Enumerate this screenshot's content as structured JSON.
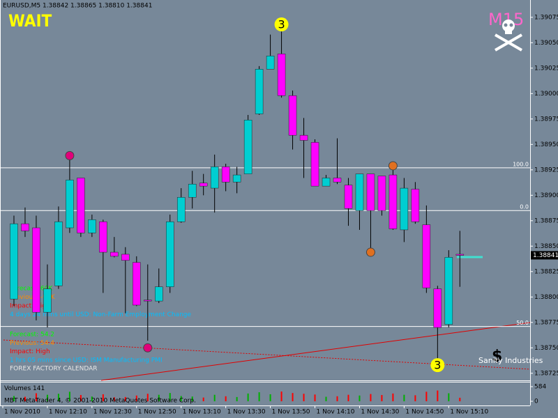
{
  "chart_data": {
    "type": "candlestick",
    "title": "EURUSD,M5  1.38842 1.38865 1.38810 1.38841",
    "signal": "WAIT",
    "timeframe_badge": "M15",
    "brand": "Sanity Industries",
    "footer": "MBT MetaTrader 4, © 2001-2010 MetaQuotes Software Corp.",
    "volume_label": "Volumes",
    "up_color": "#00ced1",
    "down_color": "#ff00ff",
    "wick_color": "#000000",
    "background": "#778899",
    "xlim": [
      -1.25,
      46.3
    ],
    "xticks": [
      {
        "value": -1,
        "label": "1 Nov 2010"
      },
      {
        "value": 3,
        "label": "1 Nov 12:10"
      },
      {
        "value": 7,
        "label": "1 Nov 12:30"
      },
      {
        "value": 11,
        "label": "1 Nov 12:50"
      },
      {
        "value": 15,
        "label": "1 Nov 13:10"
      },
      {
        "value": 19,
        "label": "1 Nov 13:30"
      },
      {
        "value": 23,
        "label": "1 Nov 13:50"
      },
      {
        "value": 27,
        "label": "1 Nov 14:10"
      },
      {
        "value": 31,
        "label": "1 Nov 14:30"
      },
      {
        "value": 35,
        "label": "1 Nov 14:50"
      },
      {
        "value": 39,
        "label": "1 Nov 15:10"
      }
    ],
    "ylim": [
      1.38718,
      1.39092
    ],
    "yticks": [
      {
        "value": 1.39075,
        "label": "1.39075"
      },
      {
        "value": 1.3905,
        "label": "1.39050"
      },
      {
        "value": 1.39025,
        "label": "1.39025"
      },
      {
        "value": 1.39,
        "label": "1.39000"
      },
      {
        "value": 1.38975,
        "label": "1.38975"
      },
      {
        "value": 1.3895,
        "label": "1.38950"
      },
      {
        "value": 1.38925,
        "label": "1.38925"
      },
      {
        "value": 1.389,
        "label": "1.38900"
      },
      {
        "value": 1.38875,
        "label": "1.38875"
      },
      {
        "value": 1.3885,
        "label": "1.38850"
      },
      {
        "value": 1.38825,
        "label": "1.38825"
      },
      {
        "value": 1.388,
        "label": "1.38800"
      },
      {
        "value": 1.38775,
        "label": "1.38775"
      },
      {
        "value": 1.3875,
        "label": "1.38750"
      },
      {
        "value": 1.38725,
        "label": "1.38725"
      }
    ],
    "open": [
      1.38798,
      1.38872,
      1.38868,
      1.38785,
      1.38811,
      1.38868,
      1.38917,
      1.38863,
      1.38874,
      1.38844,
      1.38842,
      1.38834,
      1.38797,
      1.38796,
      1.3881,
      1.38874,
      1.38898,
      1.38912,
      1.38907,
      1.38928,
      1.38913,
      1.38921,
      1.3898,
      1.39024,
      1.39039,
      1.38998,
      1.38959,
      1.38952,
      1.38909,
      1.38917,
      1.3891,
      1.38885,
      1.38921,
      1.38919,
      1.3892,
      1.38866,
      1.38906,
      1.38871,
      1.38808,
      1.38773,
      1.38842
    ],
    "high": [
      1.3888,
      1.38888,
      1.3888,
      1.38832,
      1.38889,
      1.38936,
      1.38917,
      1.38881,
      1.38876,
      1.38859,
      1.38849,
      1.3884,
      1.38832,
      1.38828,
      1.38881,
      1.38907,
      1.38924,
      1.38921,
      1.3894,
      1.38931,
      1.38928,
      1.38979,
      1.39027,
      1.39058,
      1.39061,
      1.39003,
      1.38976,
      1.38955,
      1.3892,
      1.38956,
      1.38917,
      1.38921,
      1.38921,
      1.38919,
      1.38929,
      1.38917,
      1.38913,
      1.3889,
      1.38811,
      1.38846,
      1.38865
    ],
    "low": [
      1.38791,
      1.38859,
      1.38777,
      1.3877,
      1.38808,
      1.38863,
      1.38859,
      1.38859,
      1.38804,
      1.38839,
      1.38784,
      1.38791,
      1.38757,
      1.38794,
      1.38804,
      1.38873,
      1.38887,
      1.389,
      1.38883,
      1.38904,
      1.38902,
      1.38921,
      1.38979,
      1.39024,
      1.38996,
      1.38945,
      1.38917,
      1.38909,
      1.38909,
      1.38911,
      1.3887,
      1.38866,
      1.38846,
      1.3888,
      1.38866,
      1.38854,
      1.38872,
      1.38804,
      1.38736,
      1.3877,
      1.3881
    ],
    "close": [
      1.38872,
      1.38865,
      1.38785,
      1.38808,
      1.38874,
      1.38915,
      1.38863,
      1.38876,
      1.38844,
      1.3884,
      1.38836,
      1.38792,
      1.38796,
      1.3881,
      1.38874,
      1.38898,
      1.38911,
      1.38909,
      1.38928,
      1.38913,
      1.3892,
      1.38974,
      1.39024,
      1.39037,
      1.38998,
      1.38959,
      1.38954,
      1.38909,
      1.38917,
      1.38913,
      1.38887,
      1.38921,
      1.38885,
      1.38885,
      1.38867,
      1.38907,
      1.38874,
      1.38809,
      1.3877,
      1.38839,
      1.38841
    ],
    "current_price_label": "1.38841",
    "volumes": [
      210,
      180,
      320,
      260,
      300,
      380,
      250,
      190,
      280,
      160,
      170,
      230,
      300,
      260,
      330,
      210,
      190,
      150,
      260,
      200,
      170,
      310,
      360,
      280,
      390,
      330,
      300,
      270,
      180,
      200,
      260,
      230,
      290,
      250,
      310,
      260,
      240,
      380,
      430,
      320,
      141
    ],
    "volume_up_color": "#00b000",
    "volume_down_color": "#ff0000",
    "volume_ylim": [
      0,
      584
    ],
    "volume_yticks": [
      0,
      584
    ],
    "levels": [
      {
        "value": 1.38927,
        "label": "100.0"
      },
      {
        "value": 1.38885,
        "label": "0.0"
      },
      {
        "value": 1.38771,
        "label": "50.0"
      }
    ],
    "markers": [
      {
        "index": 24,
        "price": 1.39068,
        "label": "3",
        "color": "#ffff00"
      },
      {
        "index": 38,
        "price": 1.38733,
        "label": "3",
        "color": "#ffff00"
      },
      {
        "index": 5,
        "price": 1.38939,
        "color": "#e0007a"
      },
      {
        "index": 12,
        "price": 1.3875,
        "color": "#e0007a"
      },
      {
        "index": 34,
        "price": 1.38929,
        "color": "#e07020"
      },
      {
        "index": 32,
        "price": 1.38844,
        "color": "#e07020"
      }
    ],
    "annotations": [
      {
        "text": "Forecast: 60K",
        "color": "#00ff00"
      },
      {
        "text": "Previous: -95K",
        "color": "#ff8c00"
      },
      {
        "text": "Impact: High",
        "color": "#ff0000"
      },
      {
        "text": "4 days 24 mins until USD: Non-Farm Employment Change",
        "color": "#00bfff"
      },
      {
        "text": "Forecast: 54.2",
        "color": "#00ff00"
      },
      {
        "text": "Previous: 54.4",
        "color": "#ff8c00"
      },
      {
        "text": "Impact: High",
        "color": "#ff0000"
      },
      {
        "text": "1 hrs 05 mins since USD: ISM Manufacturing PMI",
        "color": "#00bfff"
      },
      {
        "text": "FOREX FACTORY CALENDAR",
        "color": "#e8e8e8"
      }
    ]
  }
}
